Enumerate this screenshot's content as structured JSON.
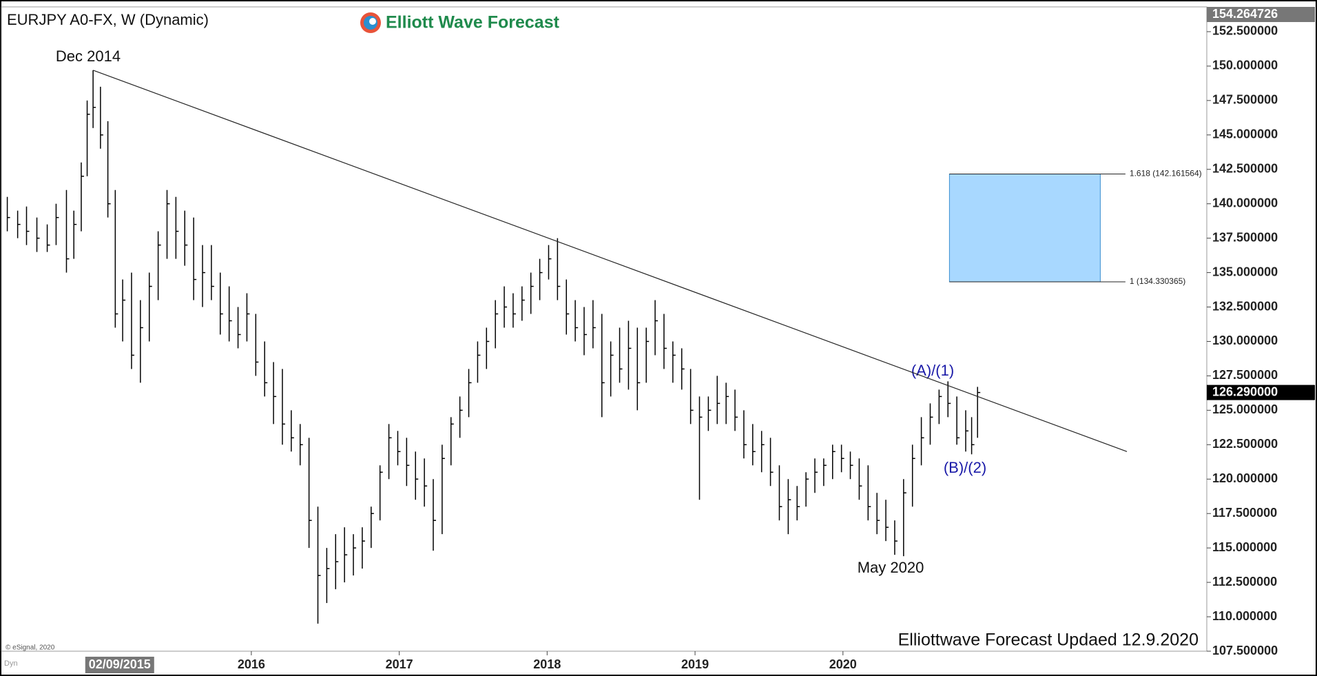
{
  "chart_data": {
    "type": "ohlc",
    "title": "EURJPY A0-FX, W (Dynamic)",
    "logo": "Elliott Wave Forecast",
    "footer": "Elliottwave Forecast Updaed 12.9.2020",
    "copyright": "© eSignal, 2020",
    "mode_label": "Dyn",
    "annotations": [
      "Dec 2014",
      "(A)/(1)",
      "(B)/(2)",
      "May 2020"
    ],
    "color": "#000000",
    "x": [
      2014.35,
      2014.42,
      2014.48,
      2014.55,
      2014.62,
      2014.68,
      2014.75,
      2014.8,
      2014.85,
      2014.89,
      2014.93,
      2014.98,
      2015.03,
      2015.08,
      2015.13,
      2015.19,
      2015.25,
      2015.31,
      2015.37,
      2015.43,
      2015.49,
      2015.55,
      2015.61,
      2015.67,
      2015.73,
      2015.79,
      2015.85,
      2015.91,
      2015.97,
      2016.03,
      2016.09,
      2016.15,
      2016.21,
      2016.27,
      2016.33,
      2016.39,
      2016.45,
      2016.51,
      2016.57,
      2016.63,
      2016.69,
      2016.75,
      2016.81,
      2016.87,
      2016.93,
      2016.99,
      2017.05,
      2017.11,
      2017.17,
      2017.23,
      2017.29,
      2017.35,
      2017.41,
      2017.47,
      2017.53,
      2017.59,
      2017.65,
      2017.71,
      2017.77,
      2017.83,
      2017.89,
      2017.95,
      2018.01,
      2018.07,
      2018.13,
      2018.19,
      2018.25,
      2018.31,
      2018.37,
      2018.43,
      2018.49,
      2018.55,
      2018.61,
      2018.67,
      2018.73,
      2018.79,
      2018.85,
      2018.91,
      2018.97,
      2019.03,
      2019.09,
      2019.15,
      2019.21,
      2019.27,
      2019.33,
      2019.39,
      2019.45,
      2019.51,
      2019.57,
      2019.63,
      2019.69,
      2019.75,
      2019.81,
      2019.87,
      2019.93,
      2019.99,
      2020.05,
      2020.11,
      2020.17,
      2020.23,
      2020.29,
      2020.35,
      2020.41,
      2020.47,
      2020.53,
      2020.59,
      2020.65,
      2020.71,
      2020.77,
      2020.83,
      2020.87,
      2020.91
    ],
    "high": [
      140.5,
      139.5,
      139.8,
      139,
      138.5,
      140,
      141,
      139.5,
      143,
      147.5,
      149.7,
      148.5,
      146,
      141,
      134.5,
      135,
      133,
      135,
      138,
      141,
      140.5,
      139.5,
      139,
      137,
      137,
      135,
      134,
      132.5,
      133.5,
      132,
      130,
      128.5,
      128,
      125,
      124,
      123,
      118,
      115,
      116,
      116.5,
      116,
      116.5,
      118,
      121,
      124,
      123.5,
      123,
      122,
      121.5,
      120,
      122.5,
      124.5,
      126,
      128,
      130,
      131,
      133,
      134,
      133.5,
      134,
      135,
      136,
      137,
      137.5,
      134.5,
      133,
      132.5,
      133,
      132,
      130,
      131,
      131.5,
      131,
      131,
      133,
      132,
      130,
      129.5,
      128,
      126,
      126,
      127.5,
      127,
      126.5,
      125,
      124,
      123.5,
      123,
      121,
      120,
      119.5,
      120.5,
      121.5,
      121.5,
      122.5,
      122.5,
      122,
      121.5,
      121,
      119,
      118.5,
      117,
      120,
      122.5,
      124.5,
      125.5,
      126.5,
      127.1,
      126,
      125,
      124.5,
      126.7
    ],
    "low": [
      138,
      137.5,
      137,
      136.5,
      136.5,
      137,
      135,
      136,
      138,
      142,
      145.5,
      144,
      139,
      131,
      130,
      128,
      127,
      130,
      133,
      136,
      136,
      135.5,
      133,
      132.5,
      133,
      130.5,
      130,
      129.5,
      130,
      127.5,
      126,
      124,
      122.5,
      122,
      121,
      115,
      109.5,
      111,
      112,
      112.5,
      113,
      113.5,
      115,
      117,
      120,
      121,
      119.5,
      118.5,
      118,
      114.8,
      116,
      121,
      123,
      124.5,
      127,
      128,
      129.5,
      131,
      131,
      131.5,
      132,
      133,
      134.5,
      133,
      130.5,
      130,
      129,
      129.5,
      124.5,
      126,
      127,
      126.5,
      125,
      127,
      129,
      128,
      127,
      126.5,
      124,
      118.5,
      123.5,
      124,
      124,
      123.5,
      121.5,
      121,
      120.5,
      119.5,
      117,
      116,
      117,
      118,
      119,
      119.5,
      120,
      120.5,
      120,
      118.5,
      117,
      116,
      115.5,
      114.5,
      114.4,
      118,
      121,
      122.5,
      124,
      124.5,
      122.5,
      122,
      121.8,
      123
    ],
    "close": [
      139,
      138.5,
      138,
      137.5,
      137,
      139,
      136,
      138.5,
      142,
      146.5,
      147,
      145,
      140,
      132,
      133,
      129,
      131,
      134,
      137,
      140,
      138,
      137,
      134.5,
      135,
      134,
      132,
      131.5,
      130.5,
      132,
      128.5,
      127,
      126,
      124,
      123,
      122.5,
      117,
      113,
      113.5,
      114,
      114.5,
      115,
      115.5,
      117.5,
      120.5,
      123,
      122,
      121,
      120,
      119.5,
      117,
      121.5,
      124,
      125,
      127,
      129,
      130,
      132,
      132.5,
      132,
      133,
      134,
      135,
      136,
      134,
      132,
      131,
      130.5,
      131,
      127,
      129,
      128,
      129.5,
      127,
      130,
      131.5,
      129.5,
      129,
      128,
      125,
      124.5,
      125,
      125.5,
      126,
      124.5,
      122.5,
      122,
      122.5,
      120.5,
      118,
      118.5,
      118,
      120,
      120.5,
      121,
      122,
      121.5,
      121,
      119.5,
      118,
      117,
      116.5,
      115.5,
      119,
      121.5,
      123,
      124.5,
      126,
      125.5,
      123,
      123.5,
      122.5,
      126.29
    ],
    "xlim": [
      2014.31,
      2022.46
    ],
    "xticks": [
      2016,
      2017,
      2018,
      2019,
      2020
    ],
    "cursor_x": {
      "value": 2015.11,
      "label": "02/09/2015"
    },
    "ylim": [
      107.5,
      154.3
    ],
    "yticks": [
      {
        "value": 107.5,
        "label": "107.500000"
      },
      {
        "value": 110,
        "label": "110.000000"
      },
      {
        "value": 112.5,
        "label": "112.500000"
      },
      {
        "value": 115,
        "label": "115.000000"
      },
      {
        "value": 117.5,
        "label": "117.500000"
      },
      {
        "value": 120,
        "label": "120.000000"
      },
      {
        "value": 122.5,
        "label": "122.500000"
      },
      {
        "value": 125,
        "label": "125.000000"
      },
      {
        "value": 127.5,
        "label": "127.500000"
      },
      {
        "value": 130,
        "label": "130.000000"
      },
      {
        "value": 132.5,
        "label": "132.500000"
      },
      {
        "value": 135,
        "label": "135.000000"
      },
      {
        "value": 137.5,
        "label": "137.500000"
      },
      {
        "value": 140,
        "label": "140.000000"
      },
      {
        "value": 142.5,
        "label": "142.500000"
      },
      {
        "value": 145,
        "label": "145.000000"
      },
      {
        "value": 147.5,
        "label": "147.500000"
      },
      {
        "value": 150,
        "label": "150.000000"
      },
      {
        "value": 152.5,
        "label": "152.500000"
      }
    ],
    "top_price": {
      "value": 154.264726,
      "label": "154.264726"
    },
    "last_price": {
      "value": 126.29,
      "label": "126.290000"
    },
    "trendline": {
      "x": [
        2014.93,
        2021.92
      ],
      "y": [
        149.7,
        122.0
      ]
    },
    "fib_box": {
      "x": [
        2020.72,
        2021.74
      ],
      "color": "#a8d8ff"
    },
    "fib_levels": [
      {
        "value": 142.161564,
        "label": "1.618 (142.161564)"
      },
      {
        "value": 134.330365,
        "label": "1 (134.330365)"
      }
    ],
    "fib_line_end": 2021.91
  }
}
